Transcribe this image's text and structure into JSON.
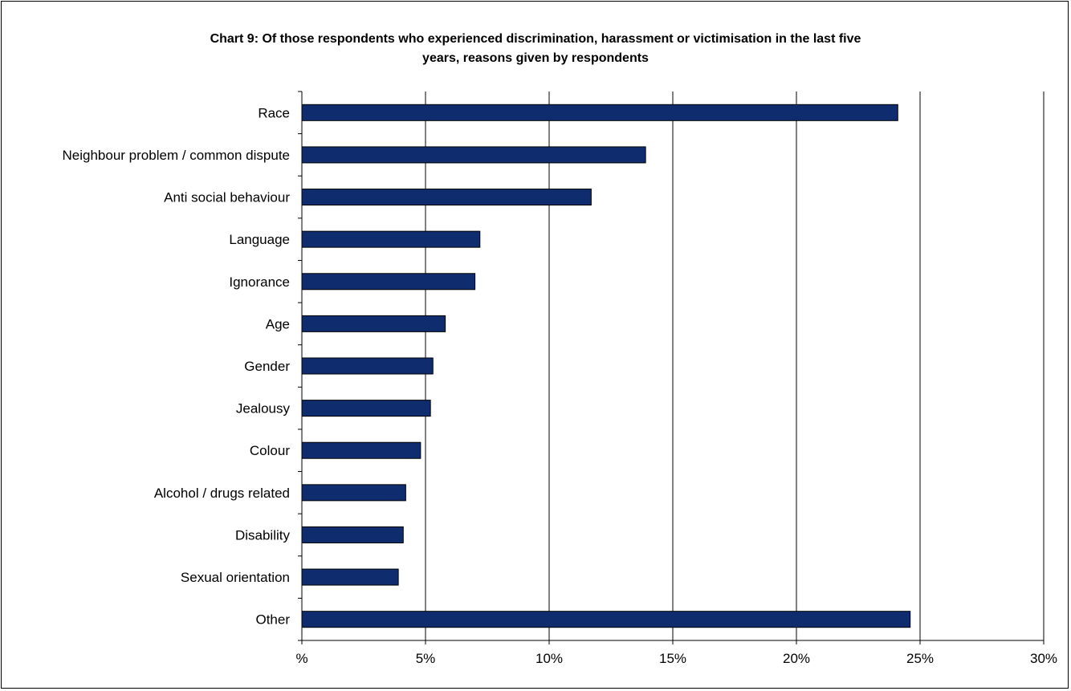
{
  "chart_data": {
    "type": "bar",
    "orientation": "horizontal",
    "title_line1": "Chart 9: Of those respondents who experienced discrimination, harassment or victimisation in the last five",
    "title_line2": "years, reasons given by respondents",
    "categories": [
      "Race",
      "Neighbour problem / common dispute",
      "Anti social behaviour",
      "Language",
      "Ignorance",
      "Age",
      "Gender",
      "Jealousy",
      "Colour",
      "Alcohol / drugs related",
      "Disability",
      "Sexual orientation",
      "Other"
    ],
    "values": [
      24.1,
      13.9,
      11.7,
      7.2,
      7.0,
      5.8,
      5.3,
      5.2,
      4.8,
      4.2,
      4.1,
      3.9,
      24.6
    ],
    "xlim": [
      0,
      30
    ],
    "xticks": [
      0,
      5,
      10,
      15,
      20,
      25,
      30
    ],
    "xtick_labels": [
      "%",
      "5%",
      "10%",
      "15%",
      "20%",
      "25%",
      "30%"
    ],
    "grid": "vertical",
    "legend": "none",
    "bar_color": "#0f2d6e"
  }
}
